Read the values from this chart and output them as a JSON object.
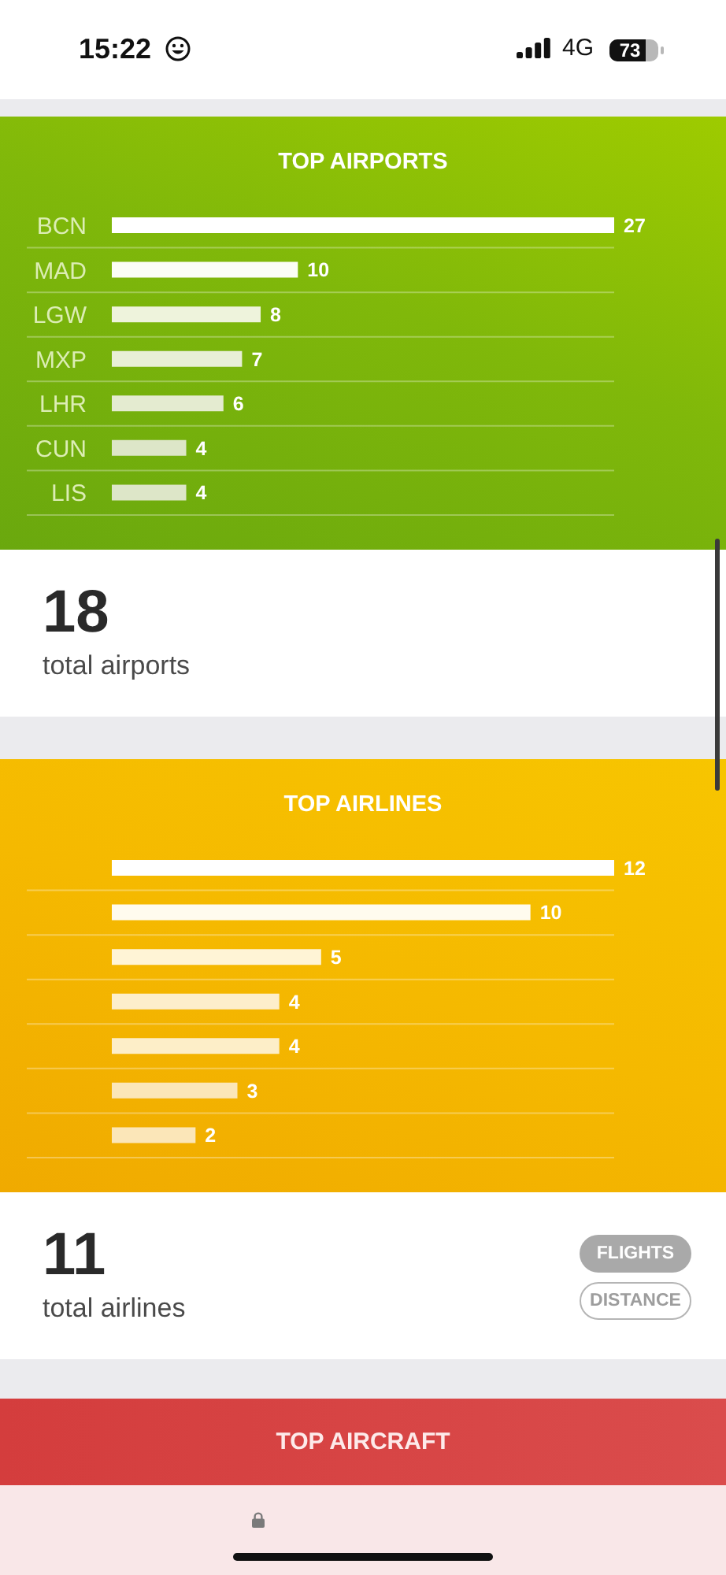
{
  "chart_data": [
    {
      "type": "other",
      "annotations": [
        "15:22",
        "4G",
        "73"
      ]
    },
    {
      "type": "bar",
      "orientation": "horizontal",
      "title": "TOP AIRPORTS",
      "categories": [
        "BCN",
        "MAD",
        "LGW",
        "MXP",
        "LHR",
        "CUN",
        "LIS"
      ],
      "values": [
        27,
        10,
        8,
        7,
        6,
        4,
        4
      ],
      "colors": [
        "#ffffff",
        "#fbfdf6",
        "#eef3dc",
        "#e8efd6",
        "#e4ebd0",
        "#dde6c8",
        "#dde6c8"
      ],
      "xlim": [
        0,
        27
      ],
      "data_labels": true,
      "grid": "y",
      "tick_labels": "y",
      "annotations": [
        "18",
        "total airports"
      ]
    },
    {
      "type": "bar",
      "orientation": "horizontal",
      "title": "TOP AIRLINES",
      "categories": [
        null,
        null,
        null,
        null,
        null,
        null,
        null
      ],
      "values": [
        12,
        10,
        5,
        4,
        4,
        3,
        2
      ],
      "colors": [
        "#ffffff",
        "#fffbee",
        "#fff4d6",
        "#fdeecb",
        "#fdeec8",
        "#fbe6b8",
        "#fbe6b8"
      ],
      "xlim": [
        0,
        12
      ],
      "data_labels": true,
      "grid": "y",
      "tick_labels": false,
      "annotations": [
        "11",
        "total airlines",
        "FLIGHTS",
        "DISTANCE"
      ]
    },
    {
      "type": "other",
      "title": "TOP AIRCRAFT"
    }
  ]
}
